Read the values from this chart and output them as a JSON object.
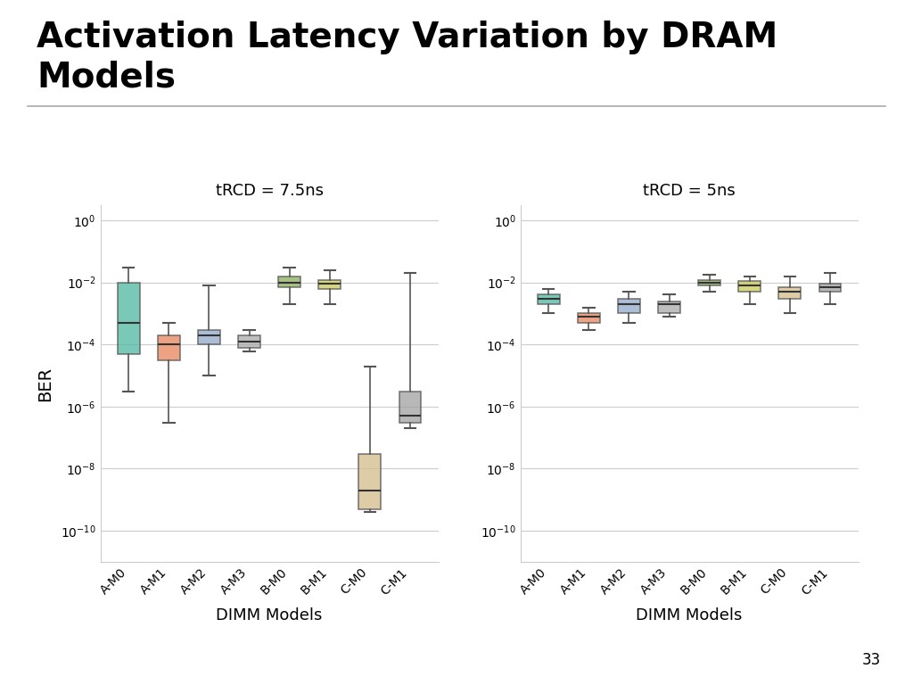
{
  "title": "Activation Latency Variation by DRAM\nModels",
  "categories": [
    "A-M0",
    "A-M1",
    "A-M2",
    "A-M3",
    "B-M0",
    "B-M1",
    "C-M0",
    "C-M1"
  ],
  "xlabel": "DIMM Models",
  "ylabel": "BER",
  "subplot1_title": "tRCD = 7.5ns",
  "subplot2_title": "tRCD = 5ns",
  "colors": [
    "#4db8a0",
    "#e8845a",
    "#8fa8c8",
    "#aaaaaa",
    "#8aab5a",
    "#c8c858",
    "#d4bc88",
    "#a0a0a0"
  ],
  "page_number": "33",
  "plot1_boxes": [
    {
      "q1": 5e-05,
      "median": 0.0005,
      "q3": 0.01,
      "whislo": 3e-06,
      "whishi": 0.03
    },
    {
      "q1": 3e-05,
      "median": 0.0001,
      "q3": 0.0002,
      "whislo": 3e-07,
      "whishi": 0.0005
    },
    {
      "q1": 0.0001,
      "median": 0.0002,
      "q3": 0.0003,
      "whislo": 1e-05,
      "whishi": 0.008
    },
    {
      "q1": 8e-05,
      "median": 0.00012,
      "q3": 0.0002,
      "whislo": 6e-05,
      "whishi": 0.0003
    },
    {
      "q1": 0.007,
      "median": 0.01,
      "q3": 0.015,
      "whislo": 0.002,
      "whishi": 0.03
    },
    {
      "q1": 0.006,
      "median": 0.009,
      "q3": 0.012,
      "whislo": 0.002,
      "whishi": 0.025
    },
    {
      "q1": 5e-10,
      "median": 2e-09,
      "q3": 3e-08,
      "whislo": 4e-10,
      "whishi": 2e-05
    },
    {
      "q1": 3e-07,
      "median": 5e-07,
      "q3": 3e-06,
      "whislo": 2e-07,
      "whishi": 0.02
    }
  ],
  "plot2_boxes": [
    {
      "q1": 0.002,
      "median": 0.003,
      "q3": 0.004,
      "whislo": 0.001,
      "whishi": 0.006
    },
    {
      "q1": 0.0005,
      "median": 0.0008,
      "q3": 0.001,
      "whislo": 0.0003,
      "whishi": 0.0015
    },
    {
      "q1": 0.001,
      "median": 0.002,
      "q3": 0.003,
      "whislo": 0.0005,
      "whishi": 0.005
    },
    {
      "q1": 0.001,
      "median": 0.002,
      "q3": 0.0025,
      "whislo": 0.0008,
      "whishi": 0.004
    },
    {
      "q1": 0.008,
      "median": 0.01,
      "q3": 0.012,
      "whislo": 0.005,
      "whishi": 0.018
    },
    {
      "q1": 0.005,
      "median": 0.008,
      "q3": 0.011,
      "whislo": 0.002,
      "whishi": 0.015
    },
    {
      "q1": 0.003,
      "median": 0.005,
      "q3": 0.007,
      "whislo": 0.001,
      "whishi": 0.015
    },
    {
      "q1": 0.005,
      "median": 0.007,
      "q3": 0.009,
      "whislo": 0.002,
      "whishi": 0.02
    }
  ],
  "ylim": [
    1e-11,
    3.0
  ],
  "yticks": [
    1e-10,
    1e-08,
    1e-06,
    0.0001,
    0.01,
    1.0
  ],
  "ytick_labels": [
    "$10^{-10}$",
    "$10^{-8}$",
    "$10^{-6}$",
    "$10^{-4}$",
    "$10^{-2}$",
    "$10^{0}$"
  ]
}
